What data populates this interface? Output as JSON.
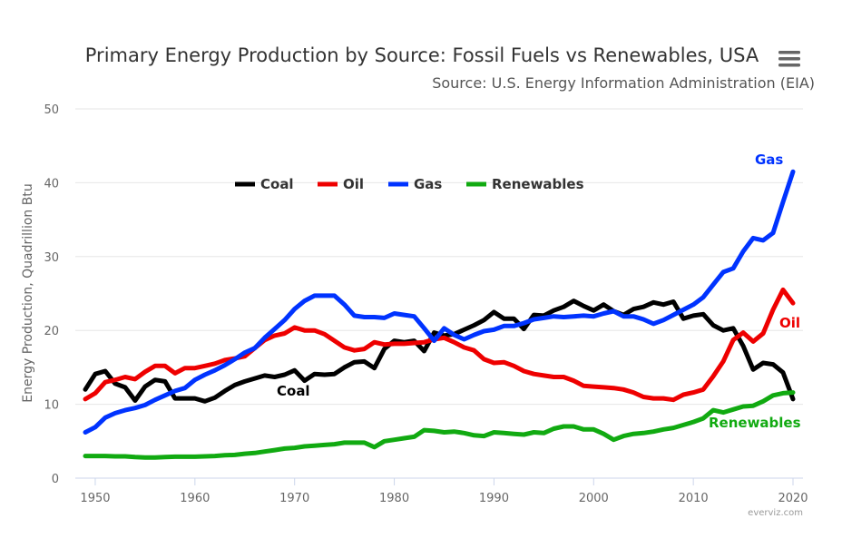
{
  "chart_data": {
    "type": "line",
    "title": "Primary Energy Production by Source: Fossil Fuels vs Renewables, USA",
    "subtitle": "Source: U.S. Energy Information Administration (EIA)",
    "xlabel": "",
    "ylabel": "Energy Production, Quadrillion Btu",
    "xlim": [
      1948,
      2021
    ],
    "ylim": [
      0,
      50
    ],
    "x_ticks": [
      "1950",
      "1960",
      "1970",
      "1980",
      "1990",
      "2000",
      "2010",
      "2020"
    ],
    "y_ticks": [
      "0",
      "10",
      "20",
      "30",
      "40",
      "50"
    ],
    "grid": true,
    "legend_position": "top-center",
    "x": [
      1949,
      1950,
      1951,
      1952,
      1953,
      1954,
      1955,
      1956,
      1957,
      1958,
      1959,
      1960,
      1961,
      1962,
      1963,
      1964,
      1965,
      1966,
      1967,
      1968,
      1969,
      1970,
      1971,
      1972,
      1973,
      1974,
      1975,
      1976,
      1977,
      1978,
      1979,
      1980,
      1981,
      1982,
      1983,
      1984,
      1985,
      1986,
      1987,
      1988,
      1989,
      1990,
      1991,
      1992,
      1993,
      1994,
      1995,
      1996,
      1997,
      1998,
      1999,
      2000,
      2001,
      2002,
      2003,
      2004,
      2005,
      2006,
      2007,
      2008,
      2009,
      2010,
      2011,
      2012,
      2013,
      2014,
      2015,
      2016,
      2017,
      2018,
      2019,
      2020
    ],
    "series": [
      {
        "name": "Coal",
        "color": "#000000",
        "values": [
          12.0,
          14.1,
          14.5,
          12.8,
          12.3,
          10.5,
          12.4,
          13.3,
          13.1,
          10.8,
          10.8,
          10.8,
          10.4,
          10.9,
          11.8,
          12.6,
          13.1,
          13.5,
          13.9,
          13.7,
          14.0,
          14.6,
          13.2,
          14.1,
          14.0,
          14.1,
          15.0,
          15.7,
          15.8,
          14.9,
          17.5,
          18.6,
          18.4,
          18.6,
          17.2,
          19.7,
          19.3,
          19.5,
          20.1,
          20.7,
          21.4,
          22.5,
          21.6,
          21.6,
          20.2,
          22.1,
          22.0,
          22.7,
          23.2,
          24.0,
          23.3,
          22.7,
          23.5,
          22.6,
          22.1,
          22.9,
          23.2,
          23.8,
          23.5,
          23.9,
          21.6,
          22.0,
          22.2,
          20.7,
          20.0,
          20.3,
          17.9,
          14.7,
          15.6,
          15.4,
          14.3,
          10.7
        ]
      },
      {
        "name": "Oil",
        "color": "#ee0000",
        "values": [
          10.7,
          11.5,
          13.0,
          13.3,
          13.7,
          13.4,
          14.4,
          15.2,
          15.2,
          14.2,
          14.9,
          14.9,
          15.2,
          15.5,
          16.0,
          16.2,
          16.5,
          17.6,
          18.7,
          19.3,
          19.6,
          20.4,
          20.0,
          20.0,
          19.5,
          18.6,
          17.7,
          17.3,
          17.5,
          18.4,
          18.1,
          18.2,
          18.2,
          18.3,
          18.4,
          18.8,
          19.0,
          18.4,
          17.7,
          17.3,
          16.1,
          15.6,
          15.7,
          15.2,
          14.5,
          14.1,
          13.9,
          13.7,
          13.7,
          13.2,
          12.5,
          12.4,
          12.3,
          12.2,
          12.0,
          11.6,
          11.0,
          10.8,
          10.8,
          10.6,
          11.3,
          11.6,
          12.0,
          13.8,
          15.8,
          18.7,
          19.7,
          18.5,
          19.6,
          22.8,
          25.5,
          23.7
        ]
      },
      {
        "name": "Gas",
        "color": "#0033ff",
        "values": [
          6.2,
          6.9,
          8.2,
          8.8,
          9.2,
          9.5,
          9.9,
          10.6,
          11.2,
          11.8,
          12.2,
          13.3,
          14.0,
          14.6,
          15.3,
          16.1,
          17.0,
          17.6,
          19.0,
          20.2,
          21.4,
          22.9,
          24.0,
          24.7,
          24.7,
          24.7,
          23.5,
          22.0,
          21.8,
          21.8,
          21.7,
          22.3,
          22.1,
          21.9,
          20.3,
          18.6,
          20.3,
          19.4,
          18.8,
          19.4,
          19.9,
          20.1,
          20.6,
          20.6,
          21.0,
          21.5,
          21.7,
          21.9,
          21.8,
          21.9,
          22.0,
          21.9,
          22.3,
          22.6,
          21.9,
          21.9,
          21.5,
          20.9,
          21.4,
          22.1,
          22.8,
          23.5,
          24.5,
          26.2,
          27.9,
          28.4,
          30.7,
          32.5,
          32.2,
          33.2,
          37.4,
          41.5
        ]
      },
      {
        "name": "Renewables",
        "color": "#11aa11",
        "values": [
          3.0,
          3.0,
          3.0,
          2.95,
          2.95,
          2.85,
          2.8,
          2.8,
          2.85,
          2.9,
          2.9,
          2.9,
          2.95,
          3.0,
          3.1,
          3.15,
          3.3,
          3.4,
          3.6,
          3.8,
          4.0,
          4.1,
          4.3,
          4.4,
          4.5,
          4.6,
          4.8,
          4.8,
          4.8,
          4.2,
          5.0,
          5.2,
          5.4,
          5.6,
          6.5,
          6.4,
          6.2,
          6.3,
          6.1,
          5.8,
          5.7,
          6.2,
          6.1,
          6.0,
          5.9,
          6.2,
          6.1,
          6.7,
          7.0,
          7.0,
          6.6,
          6.6,
          6.0,
          5.2,
          5.7,
          6.0,
          6.1,
          6.3,
          6.6,
          6.8,
          7.2,
          7.6,
          8.1,
          9.2,
          8.9,
          9.3,
          9.7,
          9.8,
          10.4,
          11.2,
          11.5,
          11.6
        ]
      }
    ],
    "annotations": [
      "Gas",
      "Oil",
      "Coal",
      "Renewables"
    ],
    "credit": "everviz.com"
  }
}
